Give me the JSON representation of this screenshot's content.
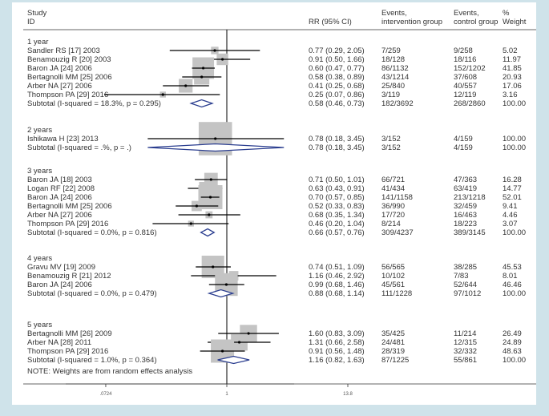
{
  "chart_data": {
    "type": "forest",
    "scale": "log",
    "header": {
      "study": "Study",
      "id": "ID",
      "rr": "RR (95% CI)",
      "events_int_1": "Events,",
      "events_int_2": "intervention group",
      "events_ctrl_1": "Events,",
      "events_ctrl_2": "control group",
      "weight_1": "%",
      "weight_2": "Weight"
    },
    "x_ticks": [
      {
        "value": 0.0724,
        "label": ".0724"
      },
      {
        "value": 1,
        "label": "1"
      },
      {
        "value": 13.8,
        "label": "13.8"
      }
    ],
    "xlim": [
      0.0724,
      13.8
    ],
    "footnote": "NOTE: Weights are from random effects analysis",
    "groups": [
      {
        "name": "1 year",
        "studies": [
          {
            "label": "Sandler RS [17] 2003",
            "rr": 0.77,
            "lo": 0.29,
            "hi": 2.05,
            "ci": "0.77 (0.29, 2.05)",
            "ev_int": "7/259",
            "ev_ctrl": "9/258",
            "weight": "5.02"
          },
          {
            "label": "Benamouzig R [20] 2003",
            "rr": 0.91,
            "lo": 0.5,
            "hi": 1.66,
            "ci": "0.91 (0.50, 1.66)",
            "ev_int": "18/128",
            "ev_ctrl": "18/116",
            "weight": "11.97"
          },
          {
            "label": "Baron JA  [24] 2006",
            "rr": 0.6,
            "lo": 0.47,
            "hi": 0.77,
            "ci": "0.60 (0.47, 0.77)",
            "ev_int": "86/1132",
            "ev_ctrl": "152/1202",
            "weight": "41.85"
          },
          {
            "label": "Bertagnolli MM [25] 2006",
            "rr": 0.58,
            "lo": 0.38,
            "hi": 0.89,
            "ci": "0.58 (0.38, 0.89)",
            "ev_int": "43/1214",
            "ev_ctrl": "37/608",
            "weight": "20.93"
          },
          {
            "label": "Arber NA  [27] 2006",
            "rr": 0.41,
            "lo": 0.25,
            "hi": 0.68,
            "ci": "0.41 (0.25, 0.68)",
            "ev_int": "25/840",
            "ev_ctrl": "40/557",
            "weight": "17.06"
          },
          {
            "label": "Thompson PA  [29] 2016",
            "rr": 0.25,
            "lo": 0.07,
            "hi": 0.86,
            "ci": "0.25 (0.07, 0.86)",
            "ev_int": "3/119",
            "ev_ctrl": "12/119",
            "weight": "3.16"
          }
        ],
        "subtotal": {
          "label": "Subtotal  (I-squared = 18.3%, p = 0.295)",
          "rr": 0.58,
          "lo": 0.46,
          "hi": 0.73,
          "ci": "0.58 (0.46, 0.73)",
          "ev_int": "182/3692",
          "ev_ctrl": "268/2860",
          "weight": "100.00"
        }
      },
      {
        "name": "2 years",
        "studies": [
          {
            "label": "Ishikawa H  [23] 2013",
            "rr": 0.78,
            "lo": 0.18,
            "hi": 3.45,
            "ci": "0.78 (0.18, 3.45)",
            "ev_int": "3/152",
            "ev_ctrl": "4/159",
            "weight": "100.00"
          }
        ],
        "subtotal": {
          "label": "Subtotal  (I-squared = .%, p = .)",
          "rr": 0.78,
          "lo": 0.18,
          "hi": 3.45,
          "ci": "0.78 (0.18, 3.45)",
          "ev_int": "3/152",
          "ev_ctrl": "4/159",
          "weight": "100.00"
        }
      },
      {
        "name": "3 years",
        "studies": [
          {
            "label": "Baron JA  [18] 2003",
            "rr": 0.71,
            "lo": 0.5,
            "hi": 1.01,
            "ci": "0.71 (0.50, 1.01)",
            "ev_int": "66/721",
            "ev_ctrl": "47/363",
            "weight": "16.28"
          },
          {
            "label": "Logan RF  [22] 2008",
            "rr": 0.63,
            "lo": 0.43,
            "hi": 0.91,
            "ci": "0.63 (0.43, 0.91)",
            "ev_int": "41/434",
            "ev_ctrl": "63/419",
            "weight": "14.77"
          },
          {
            "label": "Baron JA  [24] 2006",
            "rr": 0.7,
            "lo": 0.57,
            "hi": 0.85,
            "ci": "0.70 (0.57, 0.85)",
            "ev_int": "141/1158",
            "ev_ctrl": "213/1218",
            "weight": "52.01"
          },
          {
            "label": "Bertagnolli MM [25] 2006",
            "rr": 0.52,
            "lo": 0.33,
            "hi": 0.83,
            "ci": "0.52 (0.33, 0.83)",
            "ev_int": "36/990",
            "ev_ctrl": "32/459",
            "weight": "9.41"
          },
          {
            "label": "Arber NA  [27] 2006",
            "rr": 0.68,
            "lo": 0.35,
            "hi": 1.34,
            "ci": "0.68 (0.35, 1.34)",
            "ev_int": "17/720",
            "ev_ctrl": "16/463",
            "weight": "4.46"
          },
          {
            "label": "Thompson PA  [29] 2016",
            "rr": 0.46,
            "lo": 0.2,
            "hi": 1.04,
            "ci": "0.46 (0.20, 1.04)",
            "ev_int": "8/214",
            "ev_ctrl": "18/223",
            "weight": "3.07"
          }
        ],
        "subtotal": {
          "label": "Subtotal  (I-squared = 0.0%, p = 0.816)",
          "rr": 0.66,
          "lo": 0.57,
          "hi": 0.76,
          "ci": "0.66 (0.57, 0.76)",
          "ev_int": "309/4237",
          "ev_ctrl": "389/3145",
          "weight": "100.00"
        }
      },
      {
        "name": "4 years",
        "studies": [
          {
            "label": "Gravu MV  [19] 2009",
            "rr": 0.74,
            "lo": 0.51,
            "hi": 1.09,
            "ci": "0.74 (0.51, 1.09)",
            "ev_int": "56/565",
            "ev_ctrl": "38/285",
            "weight": "45.53"
          },
          {
            "label": "Benamouzig R [21] 2012",
            "rr": 1.16,
            "lo": 0.46,
            "hi": 2.92,
            "ci": "1.16 (0.46, 2.92)",
            "ev_int": "10/102",
            "ev_ctrl": "7/83",
            "weight": "8.01"
          },
          {
            "label": "Baron JA  [24] 2006",
            "rr": 0.99,
            "lo": 0.68,
            "hi": 1.46,
            "ci": "0.99 (0.68, 1.46)",
            "ev_int": "45/561",
            "ev_ctrl": "52/644",
            "weight": "46.46"
          }
        ],
        "subtotal": {
          "label": "Subtotal  (I-squared = 0.0%, p = 0.479)",
          "rr": 0.88,
          "lo": 0.68,
          "hi": 1.14,
          "ci": "0.88 (0.68, 1.14)",
          "ev_int": "111/1228",
          "ev_ctrl": "97/1012",
          "weight": "100.00"
        }
      },
      {
        "name": "5 years",
        "studies": [
          {
            "label": "Bertagnolli MM [26] 2009",
            "rr": 1.6,
            "lo": 0.83,
            "hi": 3.09,
            "ci": "1.60 (0.83, 3.09)",
            "ev_int": "35/425",
            "ev_ctrl": "11/214",
            "weight": "26.49"
          },
          {
            "label": "Arber NA  [28] 2011",
            "rr": 1.31,
            "lo": 0.66,
            "hi": 2.58,
            "ci": "1.31 (0.66, 2.58)",
            "ev_int": "24/481",
            "ev_ctrl": "12/315",
            "weight": "24.89"
          },
          {
            "label": "Thompson PA  [29] 2016",
            "rr": 0.91,
            "lo": 0.56,
            "hi": 1.48,
            "ci": "0.91 (0.56, 1.48)",
            "ev_int": "28/319",
            "ev_ctrl": "32/332",
            "weight": "48.63"
          }
        ],
        "subtotal": {
          "label": "Subtotal  (I-squared = 1.0%, p = 0.364)",
          "rr": 1.16,
          "lo": 0.82,
          "hi": 1.63,
          "ci": "1.16 (0.82, 1.63)",
          "ev_int": "87/1225",
          "ev_ctrl": "55/861",
          "weight": "100.00"
        }
      }
    ]
  }
}
